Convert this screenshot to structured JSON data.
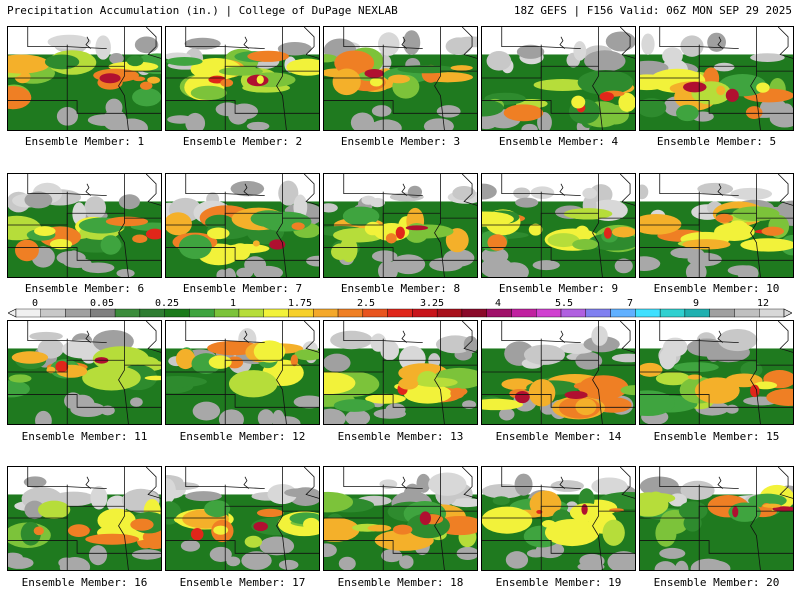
{
  "header": {
    "title_left": "Precipitation Accumulation (in.) | College of DuPage NEXLAB",
    "title_right": "18Z GEFS | F156 Valid: 06Z MON SEP 29 2025"
  },
  "colorbar": {
    "tick_labels": [
      "0",
      "0.05",
      "0.25",
      "1",
      "1.75",
      "2.5",
      "3.25",
      "4",
      "5.5",
      "7",
      "9",
      "12"
    ],
    "colors": [
      "#f0f0f0",
      "#c8c8c8",
      "#a0a0a0",
      "#808080",
      "#3c8c3c",
      "#2e7d32",
      "#1b7a1b",
      "#3fa43f",
      "#7cc33a",
      "#b6dd3a",
      "#f2f23a",
      "#f7d02a",
      "#f4a82a",
      "#ef7f24",
      "#e8541e",
      "#e0261a",
      "#c8141a",
      "#a8101c",
      "#8a0a2a",
      "#a0106a",
      "#c020a0",
      "#d040d0",
      "#b060e0",
      "#8080f0",
      "#60b0ff",
      "#40e0ff",
      "#30d0d0",
      "#20b0b0",
      "#a0a0a0",
      "#c0c0c0",
      "#d8d8d8"
    ]
  },
  "members": [
    {
      "label": "Ensemble Member: 1"
    },
    {
      "label": "Ensemble Member: 2"
    },
    {
      "label": "Ensemble Member: 3"
    },
    {
      "label": "Ensemble Member: 4"
    },
    {
      "label": "Ensemble Member: 5"
    },
    {
      "label": "Ensemble Member: 6"
    },
    {
      "label": "Ensemble Member: 7"
    },
    {
      "label": "Ensemble Member: 8"
    },
    {
      "label": "Ensemble Member: 9"
    },
    {
      "label": "Ensemble Member: 10"
    },
    {
      "label": "Ensemble Member: 11"
    },
    {
      "label": "Ensemble Member: 12"
    },
    {
      "label": "Ensemble Member: 13"
    },
    {
      "label": "Ensemble Member: 14"
    },
    {
      "label": "Ensemble Member: 15"
    },
    {
      "label": "Ensemble Member: 16"
    },
    {
      "label": "Ensemble Member: 17"
    },
    {
      "label": "Ensemble Member: 18"
    },
    {
      "label": "Ensemble Member: 19"
    },
    {
      "label": "Ensemble Member: 20"
    }
  ]
}
